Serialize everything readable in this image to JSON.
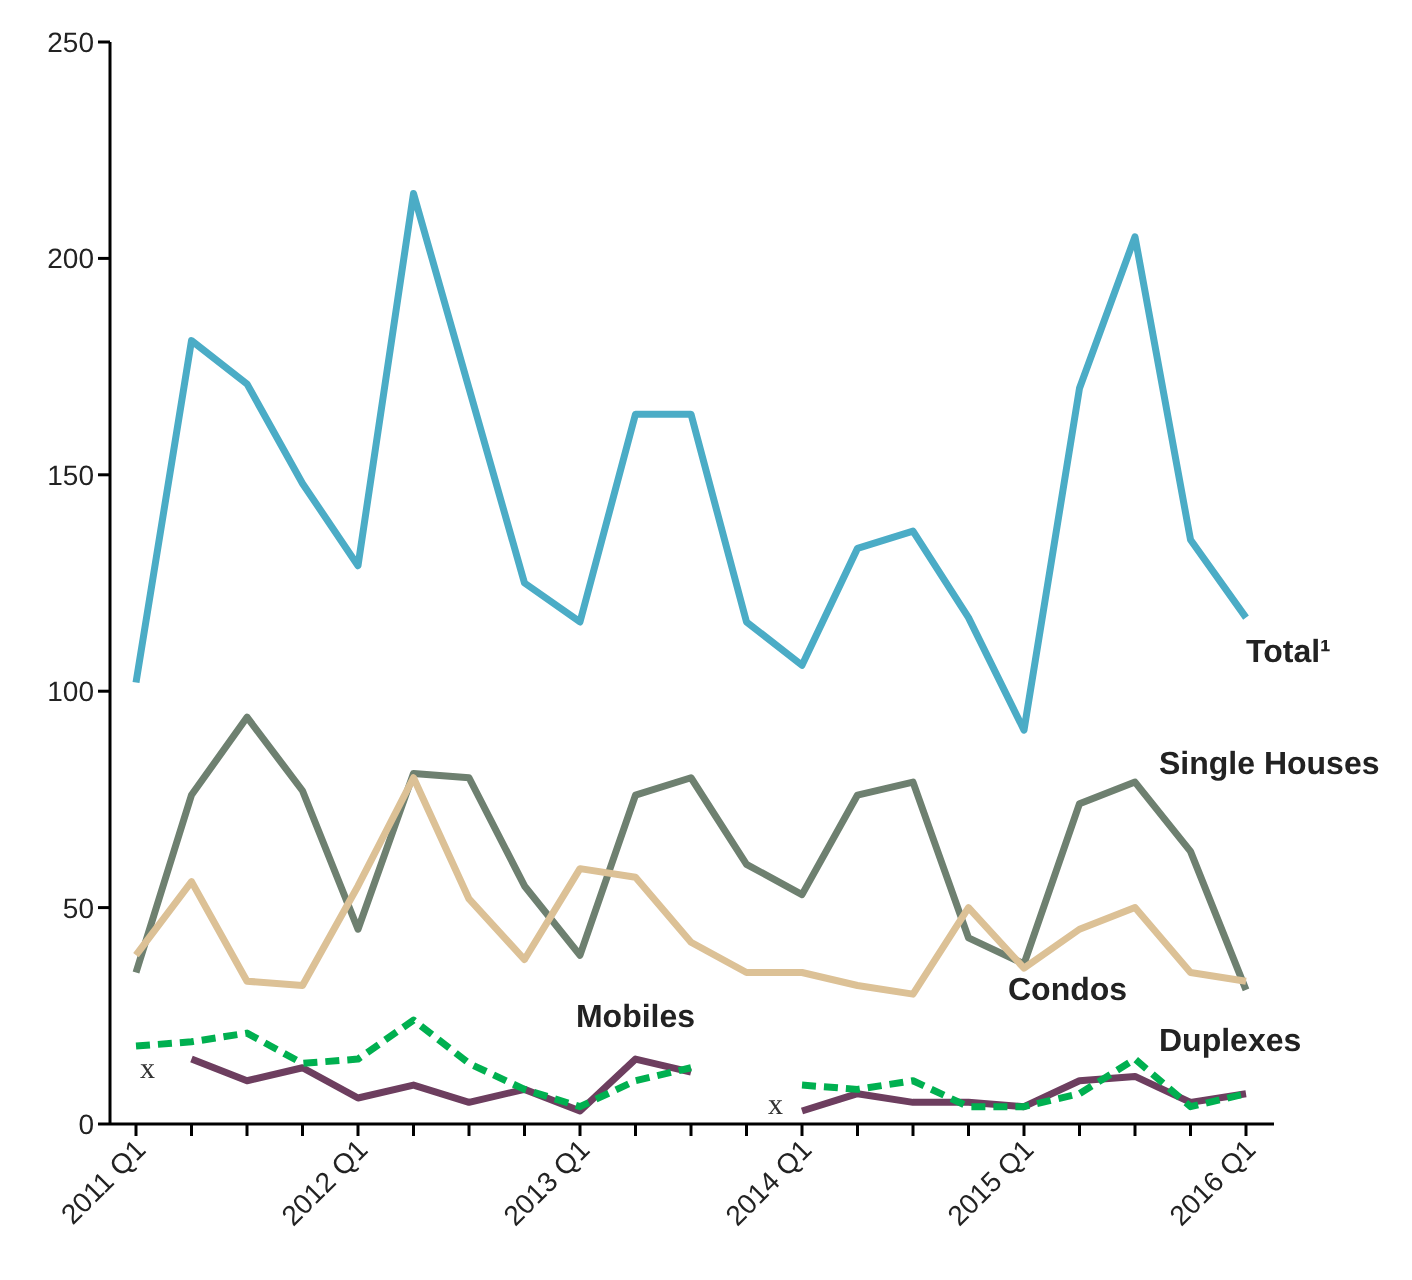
{
  "chart_data": {
    "type": "line",
    "categories": [
      "2011 Q1",
      null,
      null,
      null,
      "2012 Q1",
      null,
      null,
      null,
      "2013 Q1",
      null,
      null,
      null,
      "2014 Q1",
      null,
      null,
      null,
      "2015 Q1",
      null,
      null,
      null,
      "2016 Q1"
    ],
    "ylim": [
      0,
      250
    ],
    "yticks": [
      0,
      50,
      100,
      150,
      200,
      250
    ],
    "grid": false,
    "legend": false,
    "series": [
      {
        "name": "Total¹",
        "color": "#4bacc6",
        "line_style": "solid",
        "values": [
          102,
          181,
          171,
          148,
          129,
          215,
          170,
          125,
          116,
          164,
          164,
          116,
          106,
          133,
          137,
          117,
          91,
          170,
          205,
          135,
          117
        ]
      },
      {
        "name": "Single Houses",
        "color": "#6e8070",
        "line_style": "solid",
        "values": [
          35,
          76,
          94,
          77,
          45,
          81,
          80,
          55,
          39,
          76,
          80,
          60,
          53,
          76,
          79,
          43,
          37,
          74,
          79,
          63,
          31
        ]
      },
      {
        "name": "Condos",
        "color": "#dcc196",
        "line_style": "solid",
        "values": [
          39,
          56,
          33,
          32,
          55,
          80,
          52,
          38,
          59,
          57,
          42,
          35,
          35,
          32,
          30,
          50,
          36,
          45,
          50,
          35,
          33
        ]
      },
      {
        "name": "Mobiles",
        "color": "#6d3e5f",
        "line_style": "solid",
        "values": [
          null,
          15,
          10,
          13,
          6,
          9,
          5,
          8,
          3,
          15,
          12,
          null,
          3,
          7,
          5,
          5,
          4,
          10,
          11,
          5,
          7
        ]
      },
      {
        "name": "Duplexes",
        "color": "#00b050",
        "line_style": "dashed",
        "values": [
          18,
          19,
          21,
          14,
          15,
          24,
          14,
          8,
          4,
          10,
          13,
          null,
          9,
          8,
          10,
          4,
          4,
          7,
          15,
          4,
          7
        ]
      }
    ],
    "annotations": [
      "x",
      "x"
    ]
  }
}
